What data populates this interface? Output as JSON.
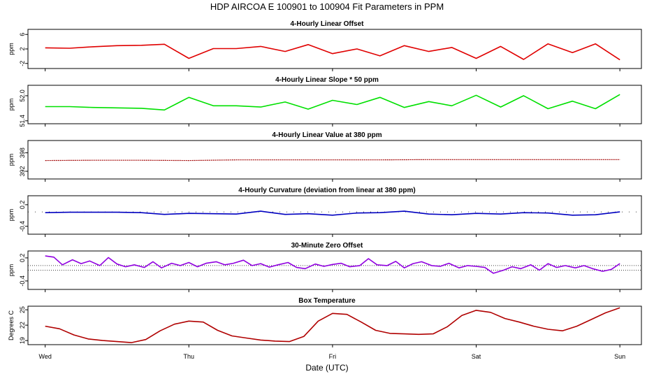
{
  "title": "HDP   AIRCOA E   100901 to 100904   Fit Parameters in PPM",
  "chart_data": [
    {
      "type": "line",
      "title": "4-Hourly Linear Offset",
      "ylabel": "ppm",
      "color": "#e00000",
      "yticks": [
        "6",
        "2",
        "-2"
      ],
      "ytick_values": [
        6,
        2,
        -2
      ],
      "ylim": [
        -3.4,
        7.4
      ],
      "line_style": "solid",
      "x": [
        0,
        0.17,
        0.33,
        0.5,
        0.67,
        0.83,
        1.0,
        1.17,
        1.33,
        1.5,
        1.67,
        1.83,
        2.0,
        2.17,
        2.33,
        2.5,
        2.67,
        2.83,
        3.0,
        3.17,
        3.33,
        3.5,
        3.67,
        3.83,
        4.0
      ],
      "values": [
        2.3,
        2.2,
        2.6,
        2.9,
        3.0,
        3.3,
        -0.6,
        2.1,
        2.1,
        2.7,
        1.3,
        3.2,
        0.7,
        2.0,
        0.1,
        2.9,
        1.3,
        2.4,
        -0.6,
        2.7,
        -0.9,
        3.4,
        1.0,
        3.4,
        -1.0
      ]
    },
    {
      "type": "line",
      "title": "4-Hourly Linear Slope * 50 ppm",
      "ylabel": "ppm",
      "color": "#00e000",
      "yticks": [
        "52.0",
        "51.4"
      ],
      "ytick_values": [
        52.0,
        51.4
      ],
      "ylim": [
        51.33,
        52.25
      ],
      "line_style": "solid",
      "x": [
        0,
        0.17,
        0.33,
        0.5,
        0.67,
        0.83,
        1.0,
        1.17,
        1.33,
        1.5,
        1.67,
        1.83,
        2.0,
        2.17,
        2.33,
        2.5,
        2.67,
        2.83,
        3.0,
        3.17,
        3.33,
        3.5,
        3.67,
        3.83,
        4.0
      ],
      "values": [
        51.74,
        51.74,
        51.72,
        51.71,
        51.7,
        51.66,
        51.96,
        51.76,
        51.76,
        51.73,
        51.85,
        51.68,
        51.89,
        51.79,
        51.96,
        51.72,
        51.86,
        51.76,
        52.01,
        51.73,
        52.0,
        51.69,
        51.87,
        51.69,
        52.03
      ]
    },
    {
      "type": "line",
      "title": "4-Hourly Linear Value at 380 ppm",
      "ylabel": "ppm",
      "color": "#a00000",
      "yticks": [
        "398",
        "392"
      ],
      "ytick_values": [
        398,
        392
      ],
      "ylim": [
        389.5,
        402
      ],
      "line_style": "dotted",
      "x": [
        0,
        0.33,
        0.67,
        1.0,
        1.33,
        1.67,
        2.0,
        2.33,
        2.67,
        3.0,
        3.33,
        3.67,
        4.0
      ],
      "values": [
        395.5,
        395.6,
        395.6,
        395.5,
        395.7,
        395.7,
        395.7,
        395.7,
        395.8,
        395.8,
        395.8,
        395.8,
        395.8
      ]
    },
    {
      "type": "line",
      "title": "4-Hourly Curvature (deviation from linear at 380 ppm)",
      "ylabel": "ppm",
      "color": "#0000c0",
      "yticks": [
        "0.2",
        "-0.4"
      ],
      "ytick_values": [
        0.2,
        -0.4
      ],
      "ylim": [
        -0.62,
        0.45
      ],
      "line_style": "solid",
      "x": [
        0,
        0.17,
        0.33,
        0.5,
        0.67,
        0.83,
        1.0,
        1.17,
        1.33,
        1.5,
        1.67,
        1.83,
        2.0,
        2.17,
        2.33,
        2.5,
        2.67,
        2.83,
        3.0,
        3.17,
        3.33,
        3.5,
        3.67,
        3.83,
        4.0
      ],
      "values": [
        -0.02,
        -0.01,
        -0.01,
        -0.01,
        -0.02,
        -0.07,
        -0.04,
        -0.05,
        -0.06,
        0.02,
        -0.07,
        -0.05,
        -0.09,
        -0.03,
        -0.02,
        0.02,
        -0.06,
        -0.08,
        -0.04,
        -0.06,
        -0.02,
        -0.03,
        -0.09,
        -0.08,
        0.0
      ]
    },
    {
      "type": "line",
      "title": "30-Minute Zero Offset",
      "ylabel": "ppm",
      "color": "#9000e0",
      "yticks": [
        "0.2",
        "-0.4"
      ],
      "ytick_values": [
        0.2,
        -0.4
      ],
      "ylim": [
        -0.62,
        0.38
      ],
      "line_style": "solid",
      "x": [
        0,
        0.06,
        0.12,
        0.19,
        0.25,
        0.31,
        0.38,
        0.44,
        0.5,
        0.56,
        0.62,
        0.69,
        0.75,
        0.81,
        0.88,
        0.94,
        1.0,
        1.06,
        1.12,
        1.19,
        1.25,
        1.31,
        1.38,
        1.44,
        1.5,
        1.56,
        1.62,
        1.69,
        1.75,
        1.81,
        1.88,
        1.94,
        2.0,
        2.06,
        2.12,
        2.19,
        2.25,
        2.31,
        2.38,
        2.44,
        2.5,
        2.56,
        2.62,
        2.69,
        2.75,
        2.81,
        2.88,
        2.94,
        3.0,
        3.06,
        3.12,
        3.19,
        3.25,
        3.31,
        3.38,
        3.44,
        3.5,
        3.56,
        3.62,
        3.69,
        3.75,
        3.81,
        3.88,
        3.94,
        4.0
      ],
      "values": [
        0.25,
        0.22,
        0.02,
        0.15,
        0.05,
        0.12,
        0.0,
        0.21,
        0.04,
        -0.03,
        0.02,
        -0.05,
        0.1,
        -0.06,
        0.06,
        0.0,
        0.08,
        -0.03,
        0.06,
        0.1,
        0.02,
        0.06,
        0.14,
        0.0,
        0.05,
        -0.04,
        0.02,
        0.08,
        -0.05,
        -0.08,
        0.04,
        -0.02,
        0.03,
        0.06,
        -0.03,
        0.0,
        0.18,
        0.02,
        0.0,
        0.11,
        -0.06,
        0.05,
        0.1,
        0.0,
        -0.02,
        0.06,
        -0.06,
        0.0,
        -0.02,
        -0.05,
        -0.2,
        -0.12,
        -0.03,
        -0.08,
        0.02,
        -0.12,
        0.05,
        -0.05,
        0.0,
        -0.06,
        0.0,
        -0.08,
        -0.15,
        -0.1,
        0.05
      ],
      "ref_lines": [
        0.0,
        -0.12
      ]
    },
    {
      "type": "line",
      "title": "Box Temperature",
      "ylabel": "Degrees C",
      "color": "#b00000",
      "yticks": [
        "25",
        "22",
        "19"
      ],
      "ytick_values": [
        25,
        22,
        19
      ],
      "ylim": [
        18.2,
        25.7
      ],
      "line_style": "solid",
      "x": [
        0,
        0.1,
        0.2,
        0.3,
        0.4,
        0.5,
        0.6,
        0.7,
        0.8,
        0.9,
        1.0,
        1.1,
        1.2,
        1.3,
        1.4,
        1.5,
        1.6,
        1.7,
        1.8,
        1.9,
        2.0,
        2.1,
        2.2,
        2.3,
        2.4,
        2.5,
        2.6,
        2.7,
        2.8,
        2.9,
        3.0,
        3.1,
        3.2,
        3.3,
        3.4,
        3.5,
        3.6,
        3.7,
        3.8,
        3.9,
        4.0
      ],
      "values": [
        21.8,
        21.3,
        20.1,
        19.3,
        19.0,
        18.8,
        18.6,
        19.2,
        20.9,
        22.2,
        22.8,
        22.6,
        21.0,
        19.9,
        19.5,
        19.1,
        18.9,
        18.8,
        19.8,
        22.8,
        24.3,
        24.1,
        22.6,
        21.0,
        20.4,
        20.3,
        20.2,
        20.3,
        21.7,
        23.9,
        24.9,
        24.5,
        23.3,
        22.6,
        21.8,
        21.2,
        20.9,
        21.8,
        23.1,
        24.4,
        25.4
      ]
    }
  ],
  "x_axis": {
    "xlabel": "Date (UTC)",
    "tick_labels": [
      "Wed",
      "Thu",
      "Fri",
      "Sat",
      "Sun"
    ],
    "tick_values": [
      0,
      1,
      2,
      3,
      4
    ],
    "xlim": [
      -0.12,
      4.15
    ]
  }
}
